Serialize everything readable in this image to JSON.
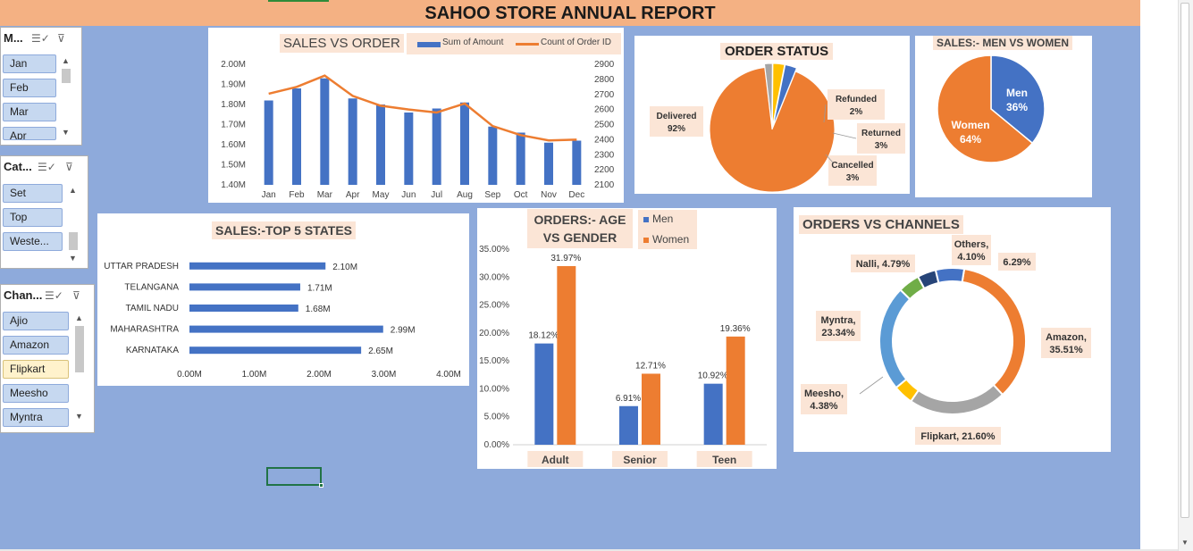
{
  "report_title": "SAHOO STORE ANNUAL REPORT",
  "slicers": {
    "month": {
      "title": "M...",
      "items": [
        "Jan",
        "Feb",
        "Mar",
        "Apr"
      ],
      "selected": []
    },
    "category": {
      "title": "Cat...",
      "items": [
        "Set",
        "Top",
        "Weste..."
      ],
      "selected": []
    },
    "channel": {
      "title": "Chan...",
      "items": [
        "Ajio",
        "Amazon",
        "Flipkart",
        "Meesho",
        "Myntra"
      ],
      "selected": [
        "Flipkart"
      ]
    },
    "icons": {
      "multiselect": "multi-select-icon",
      "clear": "clear-filter-icon"
    }
  },
  "colors": {
    "blue": "#4472c4",
    "orange": "#ed7d31",
    "gold": "#ffc000",
    "gray": "#a5a5a5",
    "lightblue": "#5b9bd5",
    "green": "#70ad47",
    "navy": "#264478",
    "label_bg": "#fbe5d6",
    "canvas": "#8eaadb",
    "title_bar": "#f4b183"
  },
  "chart_data": [
    {
      "id": "sales_vs_order",
      "type": "bar",
      "title": "SALES VS ORDER",
      "categories": [
        "Jan",
        "Feb",
        "Mar",
        "Apr",
        "May",
        "Jun",
        "Jul",
        "Aug",
        "Sep",
        "Oct",
        "Nov",
        "Dec"
      ],
      "series": [
        {
          "name": "Sum of Amount",
          "type": "bar",
          "axis": "left",
          "values": [
            1.82,
            1.88,
            1.93,
            1.83,
            1.8,
            1.76,
            1.78,
            1.81,
            1.69,
            1.66,
            1.61,
            1.62
          ]
        },
        {
          "name": "Count of Order ID",
          "type": "line",
          "axis": "right",
          "values": [
            2705,
            2750,
            2825,
            2690,
            2625,
            2600,
            2580,
            2640,
            2490,
            2430,
            2395,
            2400
          ]
        }
      ],
      "ylim": [
        1.4,
        2.0
      ],
      "yticks": [
        "2.00M",
        "1.90M",
        "1.80M",
        "1.70M",
        "1.60M",
        "1.50M",
        "1.40M"
      ],
      "y2lim": [
        2100,
        2900
      ],
      "y2ticks": [
        "2900",
        "2800",
        "2700",
        "2600",
        "2500",
        "2400",
        "2300",
        "2200",
        "2100"
      ],
      "legend": "top-right"
    },
    {
      "id": "order_status",
      "type": "pie",
      "title": "ORDER STATUS",
      "slices": [
        {
          "label": "Delivered",
          "pct_label": "92%",
          "value": 92
        },
        {
          "label": "Refunded",
          "pct_label": "2%",
          "value": 2
        },
        {
          "label": "Returned",
          "pct_label": "3%",
          "value": 3
        },
        {
          "label": "Cancelled",
          "pct_label": "3%",
          "value": 3
        }
      ]
    },
    {
      "id": "sales_men_women",
      "type": "pie",
      "title": "SALES:- MEN VS WOMEN",
      "slices": [
        {
          "label": "Men",
          "pct_label": "36%",
          "value": 36
        },
        {
          "label": "Women",
          "pct_label": "64%",
          "value": 64
        }
      ]
    },
    {
      "id": "top5_states",
      "type": "bar",
      "orientation": "horizontal",
      "title": "SALES:-TOP 5 STATES",
      "categories": [
        "UTTAR PRADESH",
        "TELANGANA",
        "TAMIL NADU",
        "MAHARASHTRA",
        "KARNATAKA"
      ],
      "values": [
        2.1,
        1.71,
        1.68,
        2.99,
        2.65
      ],
      "value_labels": [
        "2.10M",
        "1.71M",
        "1.68M",
        "2.99M",
        "2.65M"
      ],
      "xlim": [
        0,
        4
      ],
      "xticks": [
        "0.00M",
        "1.00M",
        "2.00M",
        "3.00M",
        "4.00M"
      ]
    },
    {
      "id": "age_vs_gender",
      "type": "bar",
      "title": "ORDERS:- AGE VS GENDER",
      "categories": [
        "Adult",
        "Senior",
        "Teen"
      ],
      "series": [
        {
          "name": "Men",
          "values": [
            18.12,
            6.91,
            10.92
          ],
          "labels": [
            "18.12%",
            "6.91%",
            "10.92%"
          ]
        },
        {
          "name": "Women",
          "values": [
            31.97,
            12.71,
            19.36
          ],
          "labels": [
            "31.97%",
            "12.71%",
            "19.36%"
          ]
        }
      ],
      "ylim": [
        0,
        35
      ],
      "yticks": [
        "35.00%",
        "30.00%",
        "25.00%",
        "20.00%",
        "15.00%",
        "10.00%",
        "5.00%",
        "0.00%"
      ],
      "legend": "top-right"
    },
    {
      "id": "orders_vs_channels",
      "type": "pie",
      "subtype": "donut",
      "title": "ORDERS VS CHANNELS",
      "slices": [
        {
          "label": "Amazon,",
          "pct_label": "35.51%",
          "value": 35.51
        },
        {
          "label": "Flipkart,",
          "pct_label": "21.60%",
          "value": 21.6
        },
        {
          "label": "Meesho,",
          "pct_label": "4.38%",
          "value": 4.38
        },
        {
          "label": "Myntra,",
          "pct_label": "23.34%",
          "value": 23.34
        },
        {
          "label": "Nalli,",
          "pct_label": "4.79%",
          "value": 4.79
        },
        {
          "label": "Others,",
          "pct_label": "4.10%",
          "value": 4.1
        },
        {
          "label": "",
          "pct_label": "6.29%",
          "value": 6.29
        }
      ]
    }
  ]
}
